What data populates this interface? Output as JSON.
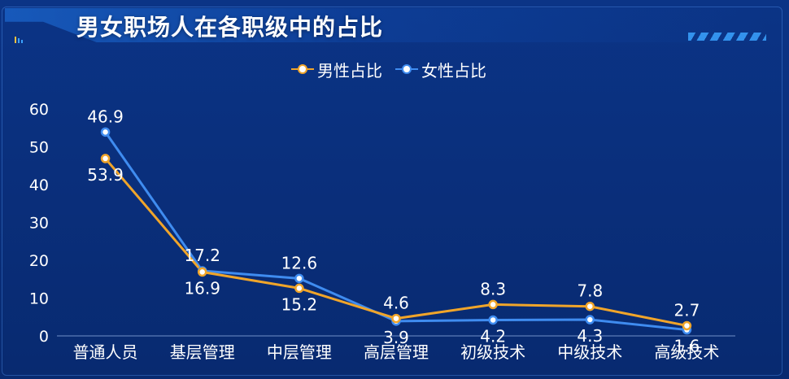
{
  "title": "男女职场人在各职级中的占比",
  "chart_data": {
    "type": "line",
    "categories": [
      "普通人员",
      "基层管理",
      "中层管理",
      "高层管理",
      "初级技术",
      "中级技术",
      "高级技术"
    ],
    "series": [
      {
        "name": "男性占比",
        "color": "#f0a52a",
        "values": [
          46.9,
          16.9,
          12.6,
          4.6,
          8.3,
          7.8,
          2.7
        ]
      },
      {
        "name": "女性占比",
        "color": "#3f8cf0",
        "values": [
          53.9,
          17.2,
          15.2,
          3.9,
          4.2,
          4.3,
          1.6
        ]
      }
    ],
    "ylim": [
      0,
      60
    ],
    "yticks": [
      0,
      10,
      20,
      30,
      40,
      50,
      60
    ],
    "grid": false,
    "legend": "top-center",
    "data_labels": [
      {
        "category": "普通人员",
        "above": "46.9",
        "below": "53.9"
      },
      {
        "category": "基层管理",
        "above": "17.2",
        "below": "16.9"
      },
      {
        "category": "中层管理",
        "above": "12.6",
        "below": "15.2"
      },
      {
        "category": "高层管理",
        "above": "4.6",
        "below": "3.9"
      },
      {
        "category": "初级技术",
        "above": "8.3",
        "below": "4.2"
      },
      {
        "category": "中级技术",
        "above": "7.8",
        "below": "4.3"
      },
      {
        "category": "高级技术",
        "above": "2.7",
        "below": "1.6"
      }
    ]
  }
}
